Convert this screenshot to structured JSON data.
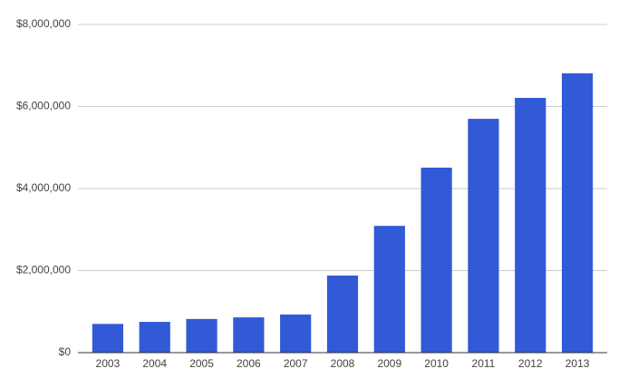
{
  "chart_data": {
    "type": "bar",
    "categories": [
      "2003",
      "2004",
      "2005",
      "2006",
      "2007",
      "2008",
      "2009",
      "2010",
      "2011",
      "2012",
      "2013"
    ],
    "values": [
      700000,
      750000,
      820000,
      860000,
      930000,
      1880000,
      3090000,
      4510000,
      5700000,
      6210000,
      6810000
    ],
    "color": "#3259d6",
    "ylim": [
      0,
      8000000
    ],
    "yticks": [
      {
        "value": 0,
        "label": "$0"
      },
      {
        "value": 2000000,
        "label": "$2,000,000"
      },
      {
        "value": 4000000,
        "label": "$4,000,000"
      },
      {
        "value": 6000000,
        "label": "$6,000,000"
      },
      {
        "value": 8000000,
        "label": "$8,000,000"
      }
    ],
    "grid": true
  }
}
